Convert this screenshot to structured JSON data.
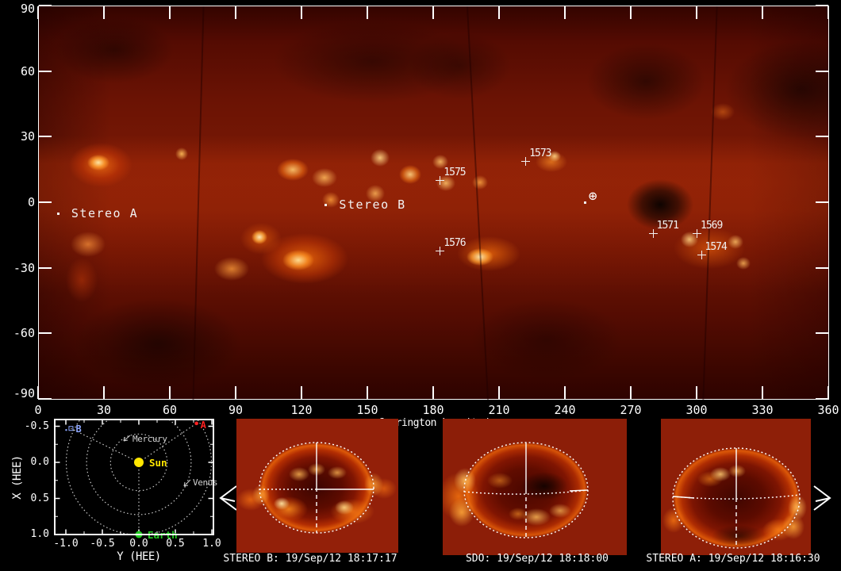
{
  "colors": {
    "frame": "#ffffff",
    "sun": "#ffe600",
    "earth": "#22cc22",
    "stereo_a_marker": "#ff2222",
    "stereo_b_marker": "#8fa8ff",
    "planet_label": "#cfcfcf",
    "annotation": "#f2f2f2"
  },
  "chart_data": [
    {
      "type": "heatmap",
      "description": "EUV synoptic map of the solar corona in Carrington coordinates",
      "xlabel": "Carrington Longitude",
      "ylabel": "",
      "xlim": [
        0,
        360
      ],
      "ylim": [
        -90,
        90
      ],
      "xticks": [
        0,
        30,
        60,
        90,
        120,
        150,
        180,
        210,
        240,
        270,
        300,
        330,
        360
      ],
      "yticks": [
        90,
        60,
        30,
        0,
        -30,
        -60,
        -90
      ],
      "grid": false,
      "active_regions": [
        {
          "label": "1575",
          "lon": 183,
          "lat": 10
        },
        {
          "label": "1573",
          "lon": 222,
          "lat": 19
        },
        {
          "label": "1576",
          "lon": 183,
          "lat": -22
        },
        {
          "label": "1571",
          "lon": 280,
          "lat": -14
        },
        {
          "label": "1569",
          "lon": 300,
          "lat": -14
        },
        {
          "label": "1574",
          "lon": 302,
          "lat": -24
        }
      ],
      "spacecraft_labels": [
        {
          "label": "Stereo A",
          "lon": 9,
          "lat": -5
        },
        {
          "label": "Stereo B",
          "lon": 131,
          "lat": -1
        }
      ],
      "earth_marker": {
        "symbol": "⊕",
        "lon": 254,
        "lat": 2,
        "dot_lon": 249,
        "dot_lat": 0
      }
    },
    {
      "type": "scatter",
      "description": "Spacecraft and planet positions in HEE coordinates",
      "xlabel": "Y (HEE)",
      "ylabel": "X (HEE)",
      "xticks": [
        -1.0,
        -0.5,
        0.0,
        0.5,
        1.0
      ],
      "xtick_labels": [
        "-1.0",
        "-0.5",
        "0.0",
        "0.5",
        "1.0"
      ],
      "yticks": [
        -0.5,
        0.0,
        0.5,
        1.0
      ],
      "ytick_labels": [
        "-0.5",
        "0.0",
        "0.5",
        "1.0"
      ],
      "orbits_au": [
        0.39,
        0.72,
        1.0
      ],
      "orbit_labels": [
        {
          "label": "Mercury"
        },
        {
          "label": "Venus"
        }
      ],
      "points": [
        {
          "name": "Sun",
          "y_hee": 0.0,
          "x_hee": 0.0
        },
        {
          "name": "Earth",
          "y_hee": 0.0,
          "x_hee": 1.0
        },
        {
          "name": "A",
          "y_hee": 0.79,
          "x_hee": -0.54
        },
        {
          "name": "B",
          "y_hee": -0.93,
          "x_hee": -0.47
        }
      ]
    }
  ],
  "disk_panels": [
    {
      "name": "STEREO B",
      "caption": "STEREO B: 19/Sep/12 18:17:17"
    },
    {
      "name": "SDO",
      "caption": "SDO: 19/Sep/12 18:18:00"
    },
    {
      "name": "STEREO A",
      "caption": "STEREO A: 19/Sep/12 18:16:30"
    }
  ],
  "nav": {
    "prev": "<",
    "next": ">"
  }
}
